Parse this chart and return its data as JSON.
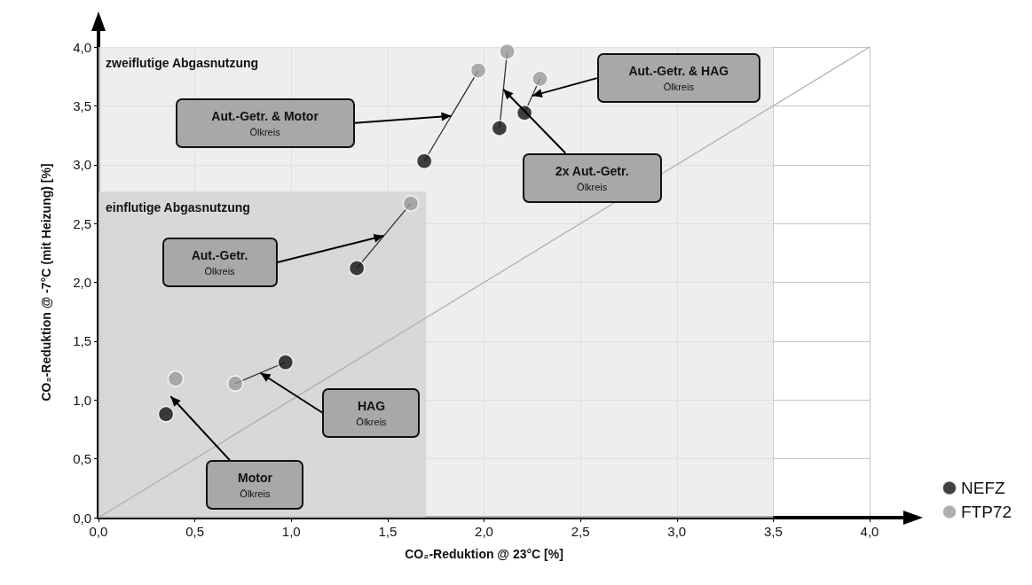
{
  "chart_data": {
    "type": "scatter",
    "xlabel": "CO₂-Reduktion @ 23°C [%]",
    "ylabel": "CO₂-Reduktion @ -7°C (mit Heizung) [%]",
    "xlim": [
      0,
      4
    ],
    "ylim": [
      0,
      4
    ],
    "xticks": [
      {
        "value": 0,
        "label": "0,0"
      },
      {
        "value": 0.5,
        "label": "0,5"
      },
      {
        "value": 1,
        "label": "1,0"
      },
      {
        "value": 1.5,
        "label": "1,5"
      },
      {
        "value": 2,
        "label": "2,0"
      },
      {
        "value": 2.5,
        "label": "2,5"
      },
      {
        "value": 3,
        "label": "3,0"
      },
      {
        "value": 3.5,
        "label": "3,5"
      },
      {
        "value": 4,
        "label": "4,0"
      }
    ],
    "yticks": [
      {
        "value": 0,
        "label": "0,0"
      },
      {
        "value": 0.5,
        "label": "0,5"
      },
      {
        "value": 1,
        "label": "1,0"
      },
      {
        "value": 1.5,
        "label": "1,5"
      },
      {
        "value": 2,
        "label": "2,0"
      },
      {
        "value": 2.5,
        "label": "2,5"
      },
      {
        "value": 3,
        "label": "3,0"
      },
      {
        "value": 3.5,
        "label": "3,5"
      },
      {
        "value": 4,
        "label": "4,0"
      }
    ],
    "grid": true,
    "legend": "bottom right",
    "marker": "circle",
    "series": [
      {
        "type": "area",
        "marker": "none",
        "color": "#e8e8e8",
        "x": [
          0,
          3.5
        ],
        "values": [
          4,
          4
        ]
      },
      {
        "type": "area",
        "marker": "none",
        "color": "#d0d0d0",
        "x": [
          0,
          1.7
        ],
        "values": [
          2.77,
          2.77
        ]
      },
      {
        "type": "line",
        "marker": "none",
        "color": "#b0b0b0",
        "x": [
          0,
          4
        ],
        "values": [
          0,
          4
        ]
      },
      {
        "type": "line",
        "marker": "none",
        "color": "#333333",
        "x": [
          0.97,
          0.71,
          null,
          1.34,
          1.62,
          null,
          1.69,
          1.97,
          null,
          2.08,
          2.12,
          null,
          2.21,
          2.29
        ],
        "values": [
          1.32,
          1.14,
          null,
          2.12,
          2.67,
          null,
          3.03,
          3.8,
          null,
          3.31,
          3.96,
          null,
          3.44,
          3.73
        ]
      },
      {
        "name": "NEFZ",
        "color": "#111111",
        "x": [
          0.35,
          0.97,
          1.34,
          1.69,
          2.08,
          2.21
        ],
        "values": [
          0.88,
          1.32,
          2.12,
          3.03,
          3.31,
          3.44
        ]
      },
      {
        "name": "FTP72",
        "color": "#9a9a9a",
        "x": [
          0.4,
          0.71,
          1.62,
          1.97,
          2.12,
          2.29
        ],
        "values": [
          1.18,
          1.14,
          2.67,
          3.8,
          3.96,
          3.73
        ]
      }
    ],
    "annotations": [
      "zweiflutige Abgasnutzung",
      "einflutige Abgasnutzung",
      "Aut.-Getr. & Motor\nÖlkreis",
      "Aut.-Getr. & HAG\nÖlkreis",
      {
        "text": "2x Aut.-Getr.\nÖlkreis",
        "x": 2.1,
        "y": 3.64
      },
      "Aut.-Getr.\nÖlkreis",
      "HAG\nÖlkreis",
      "Motor\nÖlkreis"
    ]
  }
}
